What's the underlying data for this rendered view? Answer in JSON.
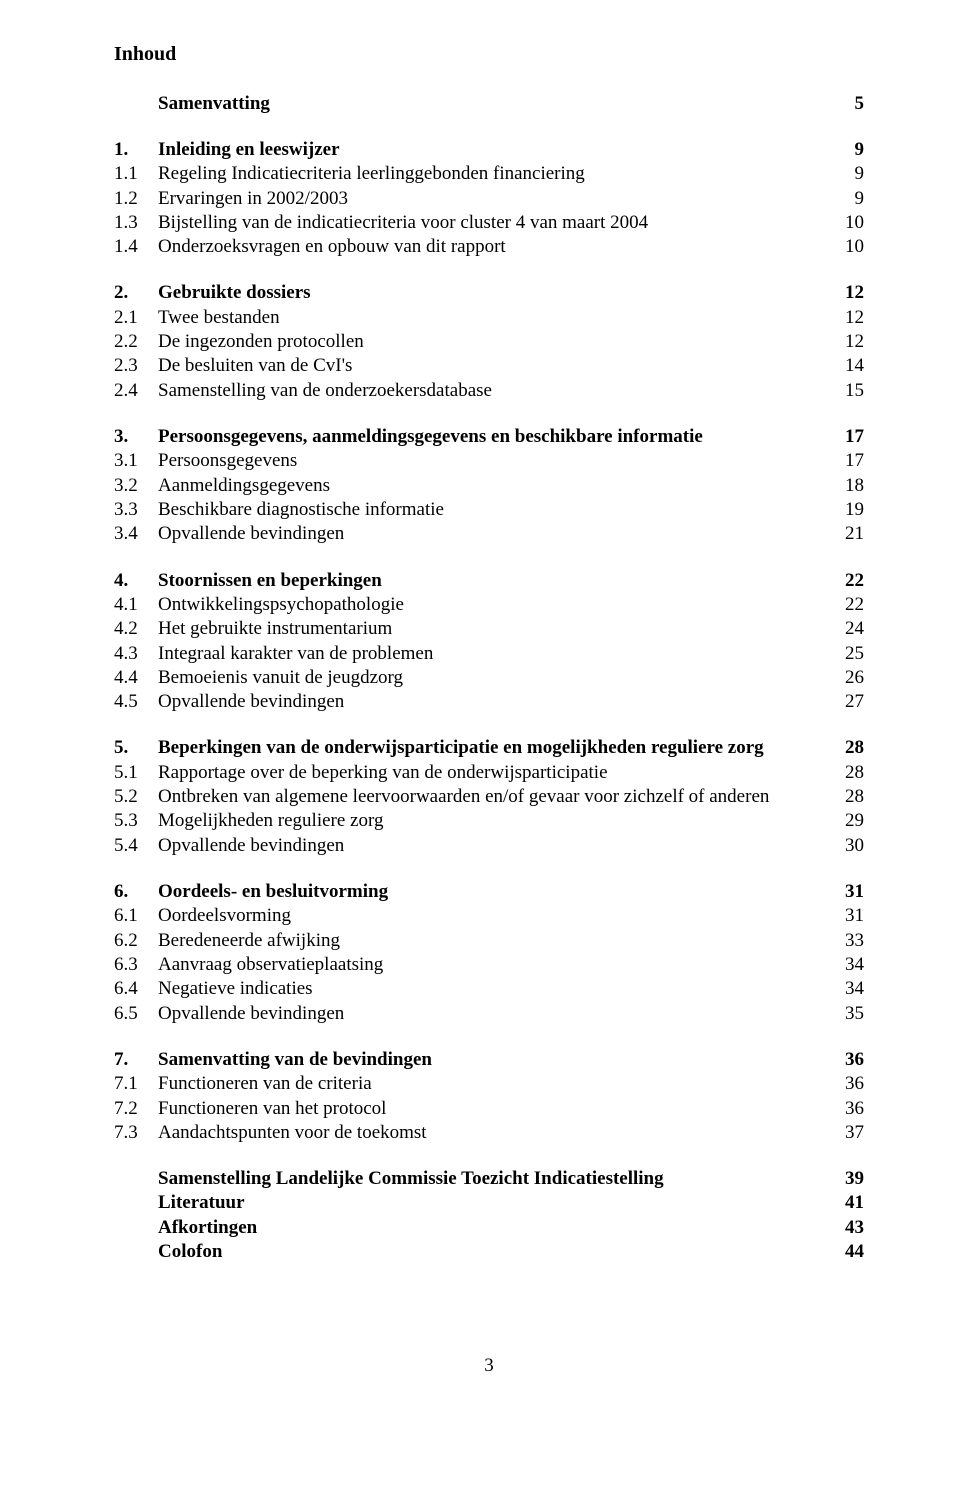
{
  "title": "Inhoud",
  "pageNumber": "3",
  "blocks": [
    {
      "type": "single",
      "bold": true,
      "num": "",
      "txt": "Samenvatting",
      "pg": "5"
    },
    {
      "type": "space"
    },
    {
      "type": "group",
      "head": {
        "num": "1.",
        "txt": "Inleiding en leeswijzer",
        "pg": "9"
      },
      "items": [
        {
          "num": "1.1",
          "txt": "Regeling Indicatiecriteria leerlinggebonden financiering",
          "pg": "9"
        },
        {
          "num": "1.2",
          "txt": "Ervaringen in 2002/2003",
          "pg": "9"
        },
        {
          "num": "1.3",
          "txt": "Bijstelling van de indicatiecriteria voor cluster 4 van maart 2004",
          "pg": "10"
        },
        {
          "num": "1.4",
          "txt": "Onderzoeksvragen en opbouw van dit rapport",
          "pg": "10"
        }
      ]
    },
    {
      "type": "group",
      "head": {
        "num": "2.",
        "txt": "Gebruikte dossiers",
        "pg": "12"
      },
      "items": [
        {
          "num": "2.1",
          "txt": "Twee bestanden",
          "pg": "12"
        },
        {
          "num": "2.2",
          "txt": "De ingezonden protocollen",
          "pg": "12"
        },
        {
          "num": "2.3",
          "txt": "De besluiten van de CvI's",
          "pg": "14"
        },
        {
          "num": "2.4",
          "txt": "Samenstelling van de onderzoekersdatabase",
          "pg": "15"
        }
      ]
    },
    {
      "type": "group",
      "head": {
        "num": "3.",
        "txt": "Persoonsgegevens, aanmeldingsgegevens en beschikbare informatie",
        "pg": "17"
      },
      "items": [
        {
          "num": "3.1",
          "txt": "Persoonsgegevens",
          "pg": "17"
        },
        {
          "num": "3.2",
          "txt": "Aanmeldingsgegevens",
          "pg": "18"
        },
        {
          "num": "3.3",
          "txt": "Beschikbare diagnostische informatie",
          "pg": "19"
        },
        {
          "num": "3.4",
          "txt": "Opvallende bevindingen",
          "pg": "21"
        }
      ]
    },
    {
      "type": "group",
      "head": {
        "num": "4.",
        "txt": "Stoornissen en beperkingen",
        "pg": "22"
      },
      "items": [
        {
          "num": "4.1",
          "txt": "Ontwikkelingspsychopathologie",
          "pg": "22"
        },
        {
          "num": "4.2",
          "txt": "Het gebruikte instrumentarium",
          "pg": "24"
        },
        {
          "num": "4.3",
          "txt": "Integraal karakter van de problemen",
          "pg": "25"
        },
        {
          "num": "4.4",
          "txt": "Bemoeienis vanuit de jeugdzorg",
          "pg": "26"
        },
        {
          "num": "4.5",
          "txt": "Opvallende bevindingen",
          "pg": "27"
        }
      ]
    },
    {
      "type": "group",
      "head": {
        "num": "5.",
        "txt": "Beperkingen van de onderwijsparticipatie en mogelijkheden reguliere zorg",
        "pg": "28"
      },
      "items": [
        {
          "num": "5.1",
          "txt": "Rapportage over de beperking van de onderwijsparticipatie",
          "pg": "28"
        },
        {
          "num": "5.2",
          "txt": "Ontbreken van algemene leervoorwaarden en/of gevaar voor zichzelf of anderen",
          "pg": "28"
        },
        {
          "num": "5.3",
          "txt": "Mogelijkheden reguliere zorg",
          "pg": "29"
        },
        {
          "num": "5.4",
          "txt": "Opvallende bevindingen",
          "pg": "30"
        }
      ]
    },
    {
      "type": "group",
      "head": {
        "num": "6.",
        "txt": "Oordeels- en besluitvorming",
        "pg": "31"
      },
      "items": [
        {
          "num": "6.1",
          "txt": "Oordeelsvorming",
          "pg": "31"
        },
        {
          "num": "6.2",
          "txt": "Beredeneerde afwijking",
          "pg": "33"
        },
        {
          "num": "6.3",
          "txt": "Aanvraag observatieplaatsing",
          "pg": "34"
        },
        {
          "num": "6.4",
          "txt": "Negatieve indicaties",
          "pg": "34"
        },
        {
          "num": "6.5",
          "txt": "Opvallende bevindingen",
          "pg": "35"
        }
      ]
    },
    {
      "type": "group",
      "head": {
        "num": "7.",
        "txt": "Samenvatting van de bevindingen",
        "pg": "36"
      },
      "items": [
        {
          "num": "7.1",
          "txt": "Functioneren van de criteria",
          "pg": "36"
        },
        {
          "num": "7.2",
          "txt": "Functioneren van het protocol",
          "pg": "36"
        },
        {
          "num": "7.3",
          "txt": "Aandachtspunten voor de toekomst",
          "pg": "37"
        }
      ]
    },
    {
      "type": "single",
      "bold": true,
      "num": "",
      "txt": "Samenstelling Landelijke Commissie Toezicht Indicatiestelling",
      "pg": "39"
    },
    {
      "type": "single",
      "bold": true,
      "num": "",
      "txt": "Literatuur",
      "pg": "41"
    },
    {
      "type": "single",
      "bold": true,
      "num": "",
      "txt": "Afkortingen",
      "pg": "43"
    },
    {
      "type": "single",
      "bold": true,
      "num": "",
      "txt": "Colofon",
      "pg": "44"
    }
  ]
}
